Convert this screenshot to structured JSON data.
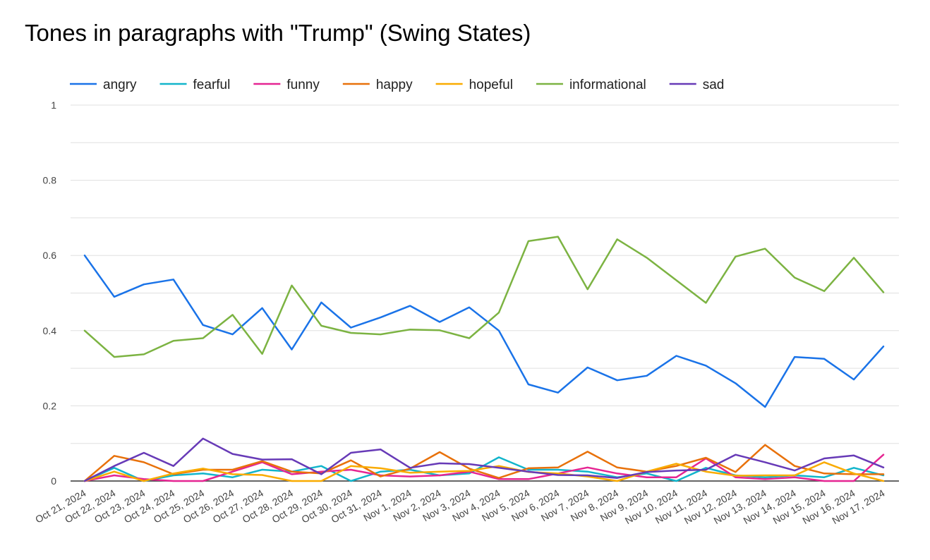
{
  "chart_data": {
    "type": "line",
    "title": "Tones in paragraphs with \"Trump\" (Swing States)",
    "xlabel": "",
    "ylabel": "",
    "ylim": [
      0,
      1
    ],
    "yticks": [
      "0",
      "0.2",
      "0.4",
      "0.6",
      "0.8",
      "1"
    ],
    "grid": true,
    "legend_position": "top-left",
    "categories": [
      "Oct 21, 2024",
      "Oct 22, 2024",
      "Oct 23, 2024",
      "Oct 24, 2024",
      "Oct 25, 2024",
      "Oct 26, 2024",
      "Oct 27, 2024",
      "Oct 28, 2024",
      "Oct 29, 2024",
      "Oct 30, 2024",
      "Oct 31, 2024",
      "Nov 1, 2024",
      "Nov 2, 2024",
      "Nov 3, 2024",
      "Nov 4, 2024",
      "Nov 5, 2024",
      "Nov 6, 2024",
      "Nov 7, 2024",
      "Nov 8, 2024",
      "Nov 9, 2024",
      "Nov 10, 2024",
      "Nov 11, 2024",
      "Nov 12, 2024",
      "Nov 13, 2024",
      "Nov 14, 2024",
      "Nov 15, 2024",
      "Nov 16, 2024",
      "Nov 17, 2024"
    ],
    "series": [
      {
        "name": "angry",
        "color": "#1a73e8",
        "values": [
          0.6,
          0.49,
          0.523,
          0.536,
          0.415,
          0.39,
          0.46,
          0.35,
          0.475,
          0.408,
          0.435,
          0.466,
          0.423,
          0.462,
          0.4,
          0.257,
          0.235,
          0.302,
          0.268,
          0.28,
          0.333,
          0.307,
          0.26,
          0.197,
          0.33,
          0.325,
          0.27,
          0.358
        ]
      },
      {
        "name": "fearful",
        "color": "#12b5cb",
        "values": [
          0,
          0.035,
          0,
          0.015,
          0.02,
          0.01,
          0.03,
          0.025,
          0.04,
          0,
          0.025,
          0.03,
          0.015,
          0.02,
          0.063,
          0.03,
          0.03,
          0.025,
          0.01,
          0.02,
          0,
          0.035,
          0.015,
          0.01,
          0.015,
          0.01,
          0.035,
          0.015
        ]
      },
      {
        "name": "funny",
        "color": "#e52592",
        "values": [
          0,
          0.015,
          0.005,
          0,
          0,
          0.025,
          0.05,
          0.018,
          0.025,
          0.03,
          0.015,
          0.012,
          0.015,
          0.025,
          0.005,
          0.005,
          0.02,
          0.036,
          0.02,
          0.01,
          0.01,
          0.06,
          0.01,
          0.005,
          0.01,
          0,
          0,
          0.07
        ]
      },
      {
        "name": "happy",
        "color": "#e8710a",
        "values": [
          0,
          0.067,
          0.05,
          0.018,
          0.03,
          0.03,
          0.053,
          0.025,
          0.02,
          0.055,
          0.012,
          0.033,
          0.077,
          0.033,
          0.008,
          0.034,
          0.036,
          0.078,
          0.036,
          0.025,
          0.04,
          0.062,
          0.024,
          0.096,
          0.04,
          0.02,
          0.018,
          0.018
        ]
      },
      {
        "name": "hopeful",
        "color": "#f9ab00",
        "values": [
          0,
          0.025,
          0,
          0.02,
          0.033,
          0.018,
          0.016,
          0,
          0,
          0.04,
          0.034,
          0.022,
          0.025,
          0.027,
          0.04,
          0.024,
          0.02,
          0.012,
          0,
          0.025,
          0.046,
          0.025,
          0.014,
          0.015,
          0.015,
          0.05,
          0.02,
          0
        ]
      },
      {
        "name": "informational",
        "color": "#7cb342",
        "values": [
          0.4,
          0.33,
          0.337,
          0.373,
          0.38,
          0.442,
          0.338,
          0.52,
          0.413,
          0.394,
          0.39,
          0.403,
          0.401,
          0.38,
          0.448,
          0.638,
          0.65,
          0.51,
          0.643,
          0.594,
          0.534,
          0.474,
          0.597,
          0.618,
          0.541,
          0.505,
          0.594,
          0.502
        ]
      },
      {
        "name": "sad",
        "color": "#673ab7",
        "values": [
          0,
          0.04,
          0.075,
          0.04,
          0.113,
          0.072,
          0.057,
          0.058,
          0.018,
          0.075,
          0.084,
          0.035,
          0.047,
          0.045,
          0.035,
          0.025,
          0.016,
          0.015,
          0.008,
          0.024,
          0.028,
          0.03,
          0.07,
          0.05,
          0.028,
          0.06,
          0.068,
          0.036
        ]
      }
    ]
  }
}
